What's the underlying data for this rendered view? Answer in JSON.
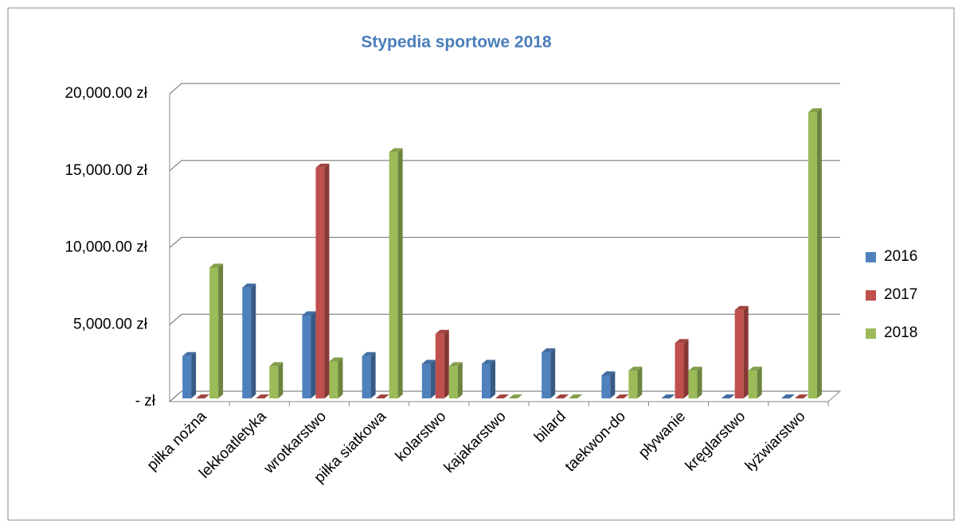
{
  "chart_data": {
    "type": "bar3d",
    "title": "Stypedia sportowe 2018",
    "categories": [
      "piłka nożna",
      "lekkoatletyka",
      "wrotkarstwo",
      "piłka siatkowa",
      "kolarstwo",
      "kajakarstwo",
      "bilard",
      "taekwon-do",
      "pływanie",
      "kręglarstwo",
      "łyżwiarstwo"
    ],
    "series": [
      {
        "name": "2016",
        "color": "#4f81bd",
        "values": [
          2750,
          7200,
          5400,
          2750,
          2250,
          2250,
          3000,
          1500,
          0,
          0,
          0
        ]
      },
      {
        "name": "2017",
        "color": "#c0504d",
        "values": [
          0,
          0,
          15000,
          0,
          4200,
          0,
          0,
          0,
          3600,
          5750,
          0
        ]
      },
      {
        "name": "2018",
        "color": "#9bbb59",
        "values": [
          8500,
          2100,
          2400,
          16000,
          2100,
          0,
          0,
          1800,
          1800,
          1800,
          18600
        ]
      }
    ],
    "ylim": [
      0,
      20000
    ],
    "yticks": [
      {
        "value": 0,
        "label": "-   zł"
      },
      {
        "value": 5000,
        "label": "5,000.00 zł"
      },
      {
        "value": 10000,
        "label": "10,000.00 zł"
      },
      {
        "value": 15000,
        "label": "15,000.00 zł"
      },
      {
        "value": 20000,
        "label": "20,000.00 zł"
      }
    ],
    "grid": true,
    "legend": "right"
  }
}
